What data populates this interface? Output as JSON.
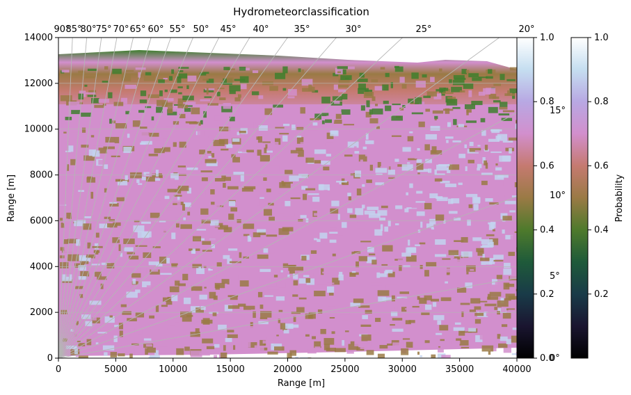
{
  "chart_data": {
    "type": "heatmap",
    "title": "Hydrometeorclassification",
    "xlabel": "Range [m]",
    "ylabel": "Range [m]",
    "xlim": [
      0,
      40000
    ],
    "ylim": [
      0,
      14000
    ],
    "x_ticks": [
      0,
      5000,
      10000,
      15000,
      20000,
      25000,
      30000,
      35000,
      40000
    ],
    "y_ticks": [
      0,
      2000,
      4000,
      6000,
      8000,
      10000,
      12000,
      14000
    ],
    "grid": "curvilinear polar (elevation angle rays)",
    "elevation_angle_labels_top": [
      "90°",
      "85°",
      "80°",
      "75°",
      "70°",
      "65°",
      "60°",
      "55°",
      "50°",
      "45°",
      "40°",
      "35°",
      "30°",
      "25°",
      "20°"
    ],
    "elevation_angle_labels_right": [
      "15°",
      "10°",
      "5°",
      "0°"
    ],
    "colormap": "cubehelix",
    "colorbar_inner": {
      "ticks": [
        0.0,
        0.2,
        0.4,
        0.6,
        0.8,
        1.0
      ],
      "label": ""
    },
    "colorbar_outer": {
      "ticks": [
        0.2,
        0.4,
        0.6,
        0.8,
        1.0
      ],
      "label": "Probability"
    },
    "colors": {
      "pink": "#d28fcd",
      "lightblue": "#c3d4ef",
      "brown": "#9a7a45",
      "green": "#3f7f2e",
      "salmon": "#c57a70",
      "dark": "#1b2a3a",
      "grid": "#b5b5b5"
    }
  }
}
